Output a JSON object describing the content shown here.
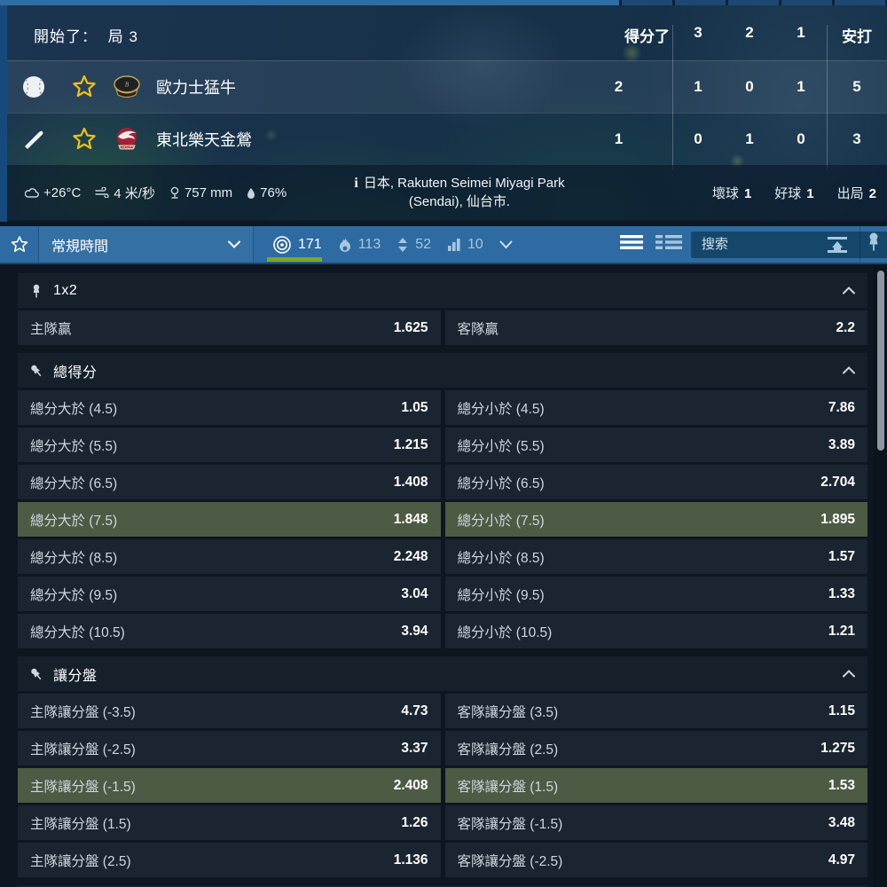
{
  "scoreboard": {
    "status_label": "開始了：",
    "inning_label": "局 3",
    "columns": {
      "scored": "得分了",
      "inn3": "3",
      "inn2": "2",
      "inn1": "1",
      "hits": "安打"
    },
    "teams": [
      {
        "name": "歐力士猛牛",
        "indicator": "baseball",
        "scored": "2",
        "inn3": "1",
        "inn2": "0",
        "inn1": "1",
        "hits": "5"
      },
      {
        "name": "東北樂天金鶯",
        "indicator": "bat",
        "scored": "1",
        "inn3": "0",
        "inn2": "1",
        "inn1": "0",
        "hits": "3"
      }
    ]
  },
  "weather": {
    "temperature": "+26°C",
    "wind": "4 米/秒",
    "pressure": "757 mm",
    "humidity": "76%"
  },
  "venue": {
    "info_icon": "i",
    "line1": "日本, Rakuten Seimei Miyagi Park",
    "line2": "(Sendai), 仙台市."
  },
  "counts": [
    {
      "label": "壞球",
      "value": "1"
    },
    {
      "label": "好球",
      "value": "1"
    },
    {
      "label": "出局",
      "value": "2"
    }
  ],
  "toolbar": {
    "period_selected": "常規時間",
    "filters": [
      {
        "icon": "target-icon",
        "count": "171",
        "active": true
      },
      {
        "icon": "flame-icon",
        "count": "113",
        "active": false
      },
      {
        "icon": "updown-icon",
        "count": "52",
        "active": false
      },
      {
        "icon": "stats-icon",
        "count": "10",
        "active": false
      }
    ],
    "search_placeholder": "搜索"
  },
  "colors": {
    "accent_green_underline": "#7ca821",
    "highlighted_row": "#4d5b44",
    "toolbar_blue": "#2d6ba2",
    "star_yellow": "#f2c211"
  },
  "markets": [
    {
      "title": "1x2",
      "pin": "straight",
      "rows": [
        {
          "highlighted": false,
          "cells": [
            {
              "label": "主隊贏",
              "odds": "1.625"
            },
            {
              "label": "客隊贏",
              "odds": "2.2"
            }
          ]
        }
      ]
    },
    {
      "title": "總得分",
      "pin": "tilted",
      "rows": [
        {
          "highlighted": false,
          "cells": [
            {
              "label": "總分大於 (4.5)",
              "odds": "1.05"
            },
            {
              "label": "總分小於 (4.5)",
              "odds": "7.86"
            }
          ]
        },
        {
          "highlighted": false,
          "cells": [
            {
              "label": "總分大於 (5.5)",
              "odds": "1.215"
            },
            {
              "label": "總分小於 (5.5)",
              "odds": "3.89"
            }
          ]
        },
        {
          "highlighted": false,
          "cells": [
            {
              "label": "總分大於 (6.5)",
              "odds": "1.408"
            },
            {
              "label": "總分小於 (6.5)",
              "odds": "2.704"
            }
          ]
        },
        {
          "highlighted": true,
          "cells": [
            {
              "label": "總分大於 (7.5)",
              "odds": "1.848"
            },
            {
              "label": "總分小於 (7.5)",
              "odds": "1.895"
            }
          ]
        },
        {
          "highlighted": false,
          "cells": [
            {
              "label": "總分大於 (8.5)",
              "odds": "2.248"
            },
            {
              "label": "總分小於 (8.5)",
              "odds": "1.57"
            }
          ]
        },
        {
          "highlighted": false,
          "cells": [
            {
              "label": "總分大於 (9.5)",
              "odds": "3.04"
            },
            {
              "label": "總分小於 (9.5)",
              "odds": "1.33"
            }
          ]
        },
        {
          "highlighted": false,
          "cells": [
            {
              "label": "總分大於 (10.5)",
              "odds": "3.94"
            },
            {
              "label": "總分小於 (10.5)",
              "odds": "1.21"
            }
          ]
        }
      ]
    },
    {
      "title": "讓分盤",
      "pin": "tilted",
      "rows": [
        {
          "highlighted": false,
          "cells": [
            {
              "label": "主隊讓分盤 (-3.5)",
              "odds": "4.73"
            },
            {
              "label": "客隊讓分盤 (3.5)",
              "odds": "1.15"
            }
          ]
        },
        {
          "highlighted": false,
          "cells": [
            {
              "label": "主隊讓分盤 (-2.5)",
              "odds": "3.37"
            },
            {
              "label": "客隊讓分盤 (2.5)",
              "odds": "1.275"
            }
          ]
        },
        {
          "highlighted": true,
          "cells": [
            {
              "label": "主隊讓分盤 (-1.5)",
              "odds": "2.408"
            },
            {
              "label": "客隊讓分盤 (1.5)",
              "odds": "1.53"
            }
          ]
        },
        {
          "highlighted": false,
          "cells": [
            {
              "label": "主隊讓分盤 (1.5)",
              "odds": "1.26"
            },
            {
              "label": "客隊讓分盤 (-1.5)",
              "odds": "3.48"
            }
          ]
        },
        {
          "highlighted": false,
          "cells": [
            {
              "label": "主隊讓分盤 (2.5)",
              "odds": "1.136"
            },
            {
              "label": "客隊讓分盤 (-2.5)",
              "odds": "4.97"
            }
          ]
        }
      ]
    }
  ]
}
